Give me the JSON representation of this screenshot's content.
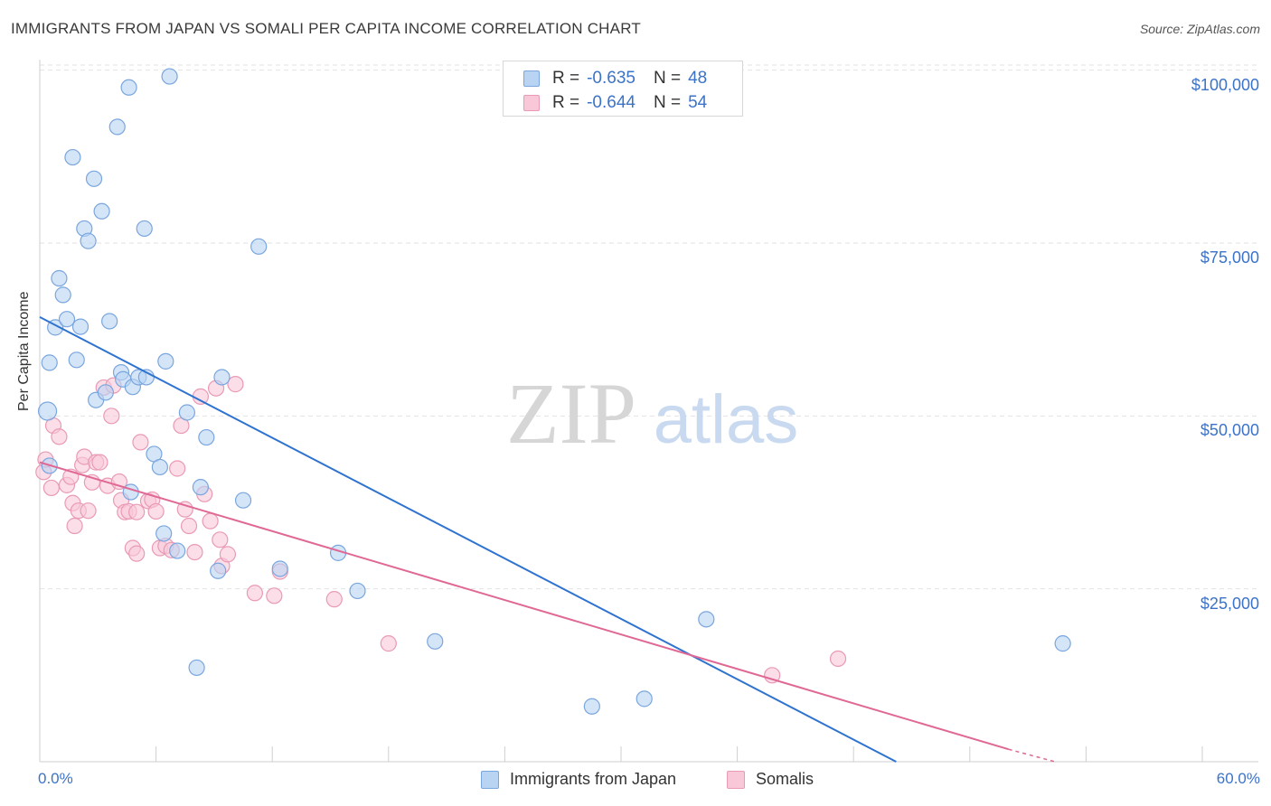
{
  "title": "IMMIGRANTS FROM JAPAN VS SOMALI PER CAPITA INCOME CORRELATION CHART",
  "source": "Source: ZipAtlas.com",
  "watermark": {
    "zip": "ZIP",
    "atlas": "atlas"
  },
  "legend": {
    "series1": {
      "r_label": "R =",
      "r_value": "-0.635",
      "n_label": "N =",
      "n_value": "48"
    },
    "series2": {
      "r_label": "R =",
      "r_value": "-0.644",
      "n_label": "N =",
      "n_value": "54"
    }
  },
  "colors": {
    "japan_fill": "#b9d3f3",
    "japan_stroke": "#7aa6de",
    "japan_line": "#2f73d0",
    "somali_fill": "#f8c8d8",
    "somali_stroke": "#e99ab4",
    "somali_line": "#e06894",
    "grid": "#e2e2e2",
    "axis_text": "#3b73c9"
  },
  "chart_data": {
    "type": "scatter",
    "title": "IMMIGRANTS FROM JAPAN VS SOMALI PER CAPITA INCOME CORRELATION CHART",
    "xlabel": "",
    "ylabel": "Per Capita Income",
    "xlim": [
      0,
      60
    ],
    "ylim": [
      0,
      101000
    ],
    "x_tick_labels": {
      "min": "0.0%",
      "max": "60.0%"
    },
    "y_ticks": [
      {
        "value": 25000,
        "label": "$25,000"
      },
      {
        "value": 50000,
        "label": "$50,000"
      },
      {
        "value": 75000,
        "label": "$75,000"
      },
      {
        "value": 100000,
        "label": "$100,000"
      }
    ],
    "series": [
      {
        "name": "Immigrants from Japan",
        "color": "#7aa6de",
        "trend": {
          "x": [
            0,
            44.2
          ],
          "y": [
            64300,
            0
          ]
        },
        "points": [
          [
            0.4,
            50700
          ],
          [
            0.5,
            57700
          ],
          [
            0.5,
            42800
          ],
          [
            0.8,
            62800
          ],
          [
            1.0,
            69900
          ],
          [
            1.2,
            67500
          ],
          [
            1.4,
            64000
          ],
          [
            1.9,
            58100
          ],
          [
            2.1,
            62900
          ],
          [
            1.7,
            87400
          ],
          [
            2.3,
            77100
          ],
          [
            2.5,
            75300
          ],
          [
            2.8,
            84300
          ],
          [
            3.2,
            79600
          ],
          [
            3.6,
            63700
          ],
          [
            2.9,
            52300
          ],
          [
            3.4,
            53400
          ],
          [
            4.0,
            91800
          ],
          [
            4.2,
            56300
          ],
          [
            4.3,
            55300
          ],
          [
            4.6,
            97500
          ],
          [
            4.7,
            39000
          ],
          [
            4.8,
            54200
          ],
          [
            5.1,
            55600
          ],
          [
            5.5,
            55600
          ],
          [
            5.4,
            77100
          ],
          [
            5.9,
            44500
          ],
          [
            6.2,
            42600
          ],
          [
            6.4,
            33000
          ],
          [
            6.5,
            57900
          ],
          [
            6.7,
            99100
          ],
          [
            7.1,
            30500
          ],
          [
            7.6,
            50500
          ],
          [
            8.1,
            13600
          ],
          [
            8.3,
            39700
          ],
          [
            8.6,
            46900
          ],
          [
            9.2,
            27600
          ],
          [
            9.4,
            55600
          ],
          [
            10.5,
            37800
          ],
          [
            11.3,
            74500
          ],
          [
            12.4,
            27900
          ],
          [
            15.4,
            30200
          ],
          [
            16.4,
            24700
          ],
          [
            20.4,
            17400
          ],
          [
            28.5,
            8000
          ],
          [
            31.2,
            9100
          ],
          [
            34.4,
            20600
          ],
          [
            52.8,
            17100
          ]
        ]
      },
      {
        "name": "Somalis",
        "color": "#e99ab4",
        "trend": {
          "x": [
            0,
            50.0
          ],
          "y": [
            43300,
            1800
          ]
        },
        "dashed_ext": {
          "x": [
            50.0,
            52.4
          ],
          "y": [
            1800,
            0
          ]
        },
        "points": [
          [
            0.2,
            41900
          ],
          [
            0.3,
            43700
          ],
          [
            0.6,
            39600
          ],
          [
            0.7,
            48600
          ],
          [
            1.0,
            47000
          ],
          [
            1.4,
            40000
          ],
          [
            1.6,
            41200
          ],
          [
            1.7,
            37400
          ],
          [
            1.8,
            34100
          ],
          [
            2.0,
            36300
          ],
          [
            2.2,
            42900
          ],
          [
            2.3,
            44100
          ],
          [
            2.5,
            36300
          ],
          [
            2.7,
            40400
          ],
          [
            2.9,
            43300
          ],
          [
            3.1,
            43300
          ],
          [
            3.3,
            54100
          ],
          [
            3.5,
            39900
          ],
          [
            3.7,
            50000
          ],
          [
            3.8,
            54400
          ],
          [
            4.1,
            40500
          ],
          [
            4.2,
            37800
          ],
          [
            4.4,
            36100
          ],
          [
            4.6,
            36200
          ],
          [
            4.8,
            30900
          ],
          [
            5.0,
            36100
          ],
          [
            5.0,
            30100
          ],
          [
            5.2,
            46200
          ],
          [
            5.6,
            37700
          ],
          [
            5.8,
            37900
          ],
          [
            6.0,
            36200
          ],
          [
            6.2,
            30900
          ],
          [
            6.5,
            31200
          ],
          [
            6.8,
            30600
          ],
          [
            7.1,
            42400
          ],
          [
            7.3,
            48600
          ],
          [
            7.5,
            36500
          ],
          [
            7.7,
            34100
          ],
          [
            8.0,
            30300
          ],
          [
            8.3,
            52800
          ],
          [
            8.5,
            38700
          ],
          [
            8.8,
            34800
          ],
          [
            9.1,
            54000
          ],
          [
            9.3,
            32100
          ],
          [
            9.4,
            28300
          ],
          [
            9.7,
            30000
          ],
          [
            10.1,
            54600
          ],
          [
            11.1,
            24400
          ],
          [
            12.1,
            24000
          ],
          [
            12.4,
            27500
          ],
          [
            15.2,
            23500
          ],
          [
            18.0,
            17100
          ],
          [
            37.8,
            12500
          ],
          [
            41.2,
            14900
          ]
        ]
      }
    ]
  },
  "bottom_legend": {
    "item1": "Immigrants from Japan",
    "item2": "Somalis"
  }
}
